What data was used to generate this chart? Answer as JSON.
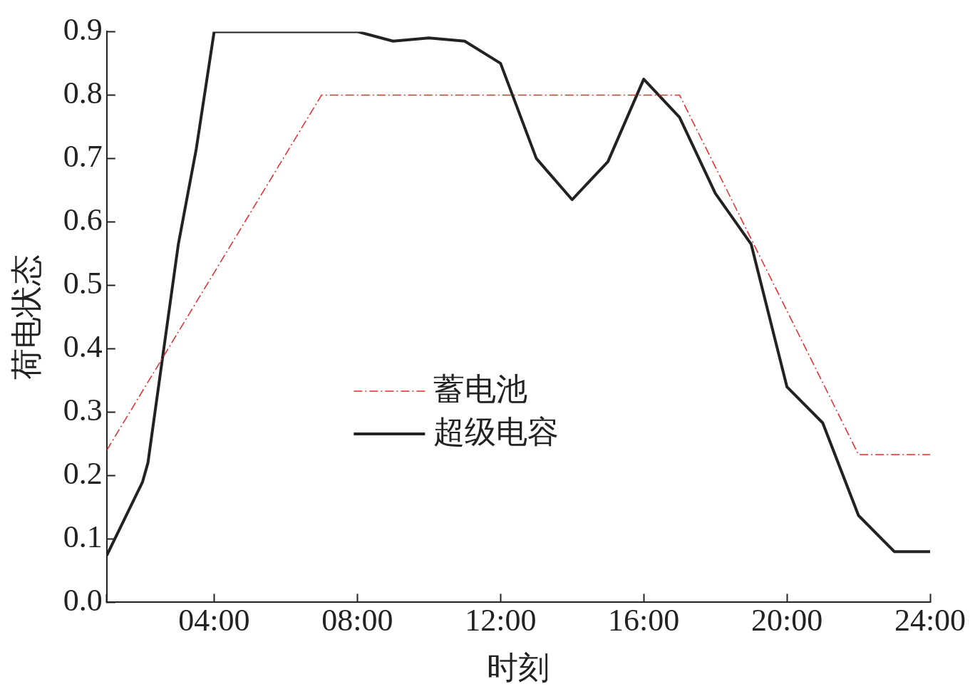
{
  "chart_data": {
    "type": "line",
    "xlabel": "时刻",
    "ylabel": "荷电状态",
    "xlim": [
      1,
      24
    ],
    "xticks": [
      {
        "value": 1,
        "label": null
      },
      {
        "value": 4,
        "label": "04:00"
      },
      {
        "value": 8,
        "label": "08:00"
      },
      {
        "value": 12,
        "label": "12:00"
      },
      {
        "value": 16,
        "label": "16:00"
      },
      {
        "value": 20,
        "label": "20:00"
      },
      {
        "value": 24,
        "label": "24:00"
      }
    ],
    "ylim": [
      0,
      0.9
    ],
    "yticks": [
      {
        "value": 0,
        "label": "0.0"
      },
      {
        "value": 0.1,
        "label": "0.1"
      },
      {
        "value": 0.2,
        "label": "0.2"
      },
      {
        "value": 0.3,
        "label": "0.3"
      },
      {
        "value": 0.4,
        "label": "0.4"
      },
      {
        "value": 0.5,
        "label": "0.5"
      },
      {
        "value": 0.6,
        "label": "0.6"
      },
      {
        "value": 0.7,
        "label": "0.7"
      },
      {
        "value": 0.8,
        "label": "0.8"
      },
      {
        "value": 0.9,
        "label": "0.9"
      }
    ],
    "grid": false,
    "legend": "center",
    "marker": "none",
    "series": [
      {
        "name": "蓄电池",
        "color": "#e8282a",
        "line_style": "dashed",
        "x": [
          1,
          7,
          17,
          22,
          24
        ],
        "values": [
          0.24,
          0.8,
          0.8,
          0.233,
          0.233
        ]
      },
      {
        "name": "超级电容",
        "color": "#222222",
        "line_style": "solid",
        "x": [
          1,
          2,
          2.15,
          3,
          3.5,
          4,
          8,
          9,
          10,
          11,
          12,
          13,
          14,
          15,
          16,
          17,
          18,
          19,
          20,
          21,
          22,
          23,
          24
        ],
        "values": [
          0.074,
          0.19,
          0.22,
          0.565,
          0.715,
          0.9,
          0.9,
          0.885,
          0.89,
          0.885,
          0.85,
          0.7,
          0.635,
          0.695,
          0.825,
          0.765,
          0.645,
          0.565,
          0.34,
          0.283,
          0.137,
          0.08,
          0.08
        ]
      }
    ]
  }
}
